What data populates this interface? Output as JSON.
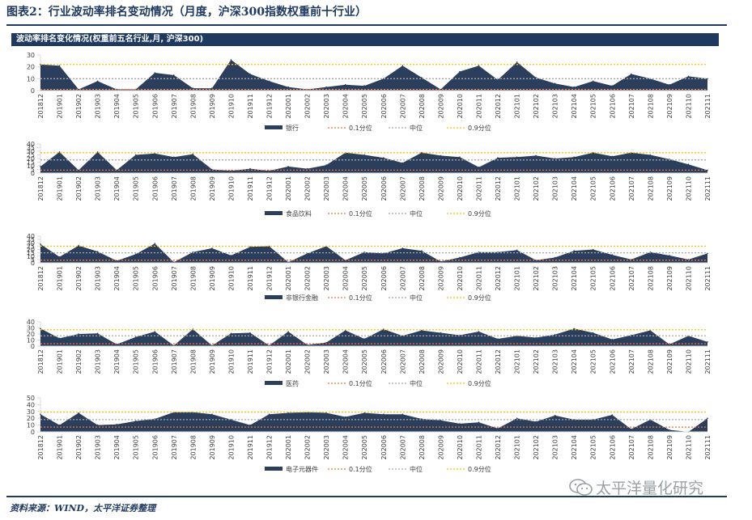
{
  "page_title": "图表2：行业波动率排名变动情况（月度，沪深300指数权重前十行业）",
  "panel_title": "波动率排名变化情况(权重前五名行业,月, 沪深300)",
  "source_note": "资料来源：WIND，太平洋证券整理",
  "watermark_text": "太平洋量化研究",
  "colors": {
    "area": "#2b3e5c",
    "q10": "#e8743b",
    "median": "#a6a6a6",
    "q90": "#ffc000",
    "axis": "#d9d9d9"
  },
  "chart_data": [
    {
      "type": "area",
      "categories": [
        "201812",
        "201901",
        "201902",
        "201903",
        "201904",
        "201905",
        "201906",
        "201907",
        "201908",
        "201909",
        "201910",
        "201911",
        "201912",
        "202001",
        "202002",
        "202003",
        "202004",
        "202005",
        "202006",
        "202007",
        "202008",
        "202009",
        "202010",
        "202011",
        "202012",
        "202101",
        "202102",
        "202103",
        "202104",
        "202105",
        "202106",
        "202107",
        "202108",
        "202109",
        "202110",
        "202111"
      ],
      "yticks": [
        0,
        10,
        20,
        30
      ],
      "ylim": [
        0,
        30
      ],
      "series": [
        {
          "name": "银行",
          "values": [
            22,
            21,
            1,
            8,
            1,
            1,
            15,
            13,
            2,
            2,
            26,
            14,
            8,
            3,
            1,
            3,
            5,
            4,
            10,
            21,
            11,
            1,
            16,
            21,
            9,
            24,
            11,
            6,
            3,
            8,
            4,
            14,
            10,
            5,
            12,
            10
          ]
        },
        {
          "name": "0.1分位",
          "constant": 1
        },
        {
          "name": "中位",
          "constant": 10
        },
        {
          "name": "0.9分位",
          "constant": 22
        }
      ]
    },
    {
      "type": "area",
      "categories": [
        "201812",
        "201901",
        "201902",
        "201903",
        "201904",
        "201905",
        "201906",
        "201907",
        "201908",
        "201909",
        "201910",
        "201911",
        "201912",
        "202001",
        "202002",
        "202003",
        "202004",
        "202005",
        "202006",
        "202007",
        "202008",
        "202009",
        "202010",
        "202011",
        "202012",
        "202101",
        "202102",
        "202103",
        "202104",
        "202105",
        "202106",
        "202107",
        "202108",
        "202109",
        "202110",
        "202111"
      ],
      "yticks": [
        0,
        5,
        10,
        15,
        20,
        25,
        30,
        35,
        40
      ],
      "ylim": [
        0,
        40
      ],
      "series": [
        {
          "name": "食品饮料",
          "values": [
            9,
            29,
            4,
            29,
            4,
            25,
            27,
            22,
            26,
            5,
            3,
            6,
            3,
            9,
            6,
            11,
            28,
            25,
            21,
            14,
            28,
            24,
            22,
            8,
            21,
            22,
            24,
            20,
            22,
            28,
            23,
            28,
            25,
            19,
            12,
            4
          ]
        },
        {
          "name": "0.1分位",
          "constant": 4
        },
        {
          "name": "中位",
          "constant": 18
        },
        {
          "name": "0.9分位",
          "constant": 28
        }
      ]
    },
    {
      "type": "area",
      "categories": [
        "201812",
        "201901",
        "201902",
        "201903",
        "201904",
        "201905",
        "201906",
        "201907",
        "201908",
        "201909",
        "201910",
        "201911",
        "201912",
        "202001",
        "202002",
        "202003",
        "202004",
        "202005",
        "202006",
        "202007",
        "202008",
        "202009",
        "202010",
        "202011",
        "202012",
        "202101",
        "202102",
        "202103",
        "202104",
        "202105",
        "202106",
        "202107",
        "202108",
        "202109",
        "202110",
        "202111"
      ],
      "yticks": [
        0,
        5,
        10,
        15,
        20,
        25,
        30,
        35,
        40
      ],
      "ylim": [
        0,
        40
      ],
      "series": [
        {
          "name": "非银行金融",
          "values": [
            28,
            9,
            26,
            17,
            3,
            13,
            29,
            1,
            16,
            22,
            11,
            24,
            25,
            1,
            14,
            25,
            4,
            16,
            14,
            22,
            18,
            2,
            8,
            16,
            16,
            19,
            4,
            8,
            18,
            20,
            12,
            5,
            16,
            11,
            5,
            14
          ]
        },
        {
          "name": "0.1分位",
          "constant": 4
        },
        {
          "name": "中位",
          "constant": 15
        },
        {
          "name": "0.9分位",
          "constant": 25
        }
      ]
    },
    {
      "type": "area",
      "categories": [
        "201812",
        "201901",
        "201902",
        "201903",
        "201904",
        "201905",
        "201906",
        "201907",
        "201908",
        "201909",
        "201910",
        "201911",
        "201912",
        "202001",
        "202002",
        "202003",
        "202004",
        "202005",
        "202006",
        "202007",
        "202008",
        "202009",
        "202010",
        "202011",
        "202012",
        "202101",
        "202102",
        "202103",
        "202104",
        "202105",
        "202106",
        "202107",
        "202108",
        "202109",
        "202110",
        "202111"
      ],
      "yticks": [
        0,
        10,
        20,
        30,
        40
      ],
      "ylim": [
        0,
        40
      ],
      "series": [
        {
          "name": "医药",
          "values": [
            29,
            13,
            20,
            21,
            3,
            15,
            24,
            1,
            28,
            1,
            21,
            22,
            1,
            24,
            2,
            6,
            26,
            12,
            28,
            17,
            26,
            22,
            18,
            24,
            12,
            17,
            14,
            19,
            29,
            22,
            11,
            18,
            26,
            3,
            17,
            7
          ]
        },
        {
          "name": "0.1分位",
          "constant": 4
        },
        {
          "name": "中位",
          "constant": 17
        },
        {
          "name": "0.9分位",
          "constant": 27
        }
      ]
    },
    {
      "type": "area",
      "categories": [
        "201812",
        "201901",
        "201902",
        "201903",
        "201904",
        "201905",
        "201906",
        "201907",
        "201908",
        "201909",
        "201910",
        "201911",
        "201912",
        "202001",
        "202002",
        "202003",
        "202004",
        "202005",
        "202006",
        "202007",
        "202008",
        "202009",
        "202010",
        "202011",
        "202012",
        "202101",
        "202102",
        "202103",
        "202104",
        "202105",
        "202106",
        "202107",
        "202108",
        "202109",
        "202110",
        "202111"
      ],
      "yticks": [
        0,
        10,
        20,
        30,
        40,
        50
      ],
      "ylim": [
        0,
        50
      ],
      "series": [
        {
          "name": "电子元器件",
          "values": [
            26,
            10,
            28,
            10,
            11,
            16,
            19,
            29,
            29,
            26,
            18,
            10,
            26,
            28,
            29,
            28,
            22,
            28,
            26,
            26,
            19,
            17,
            12,
            14,
            5,
            20,
            15,
            24,
            18,
            18,
            25,
            4,
            18,
            3,
            0,
            20
          ]
        },
        {
          "name": "0.1分位",
          "constant": 7
        },
        {
          "name": "中位",
          "constant": 18
        },
        {
          "name": "0.9分位",
          "constant": 29
        }
      ]
    }
  ]
}
